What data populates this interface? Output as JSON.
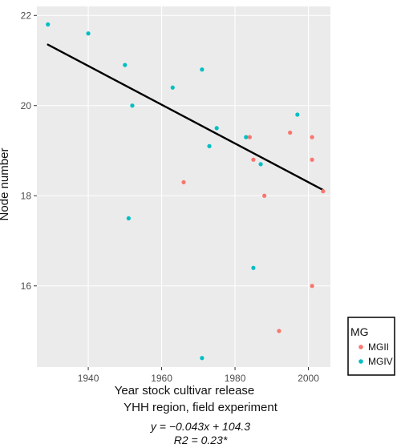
{
  "chart_data": {
    "type": "scatter",
    "xlabel": "Year stock cultivar release",
    "ylabel": "Node number",
    "xlim": [
      1926,
      2006
    ],
    "ylim": [
      14.2,
      22.2
    ],
    "x_ticks": [
      1940,
      1960,
      1980,
      2000
    ],
    "y_ticks": [
      16,
      18,
      20,
      22
    ],
    "x_tick_labels": [
      "1940",
      "1960",
      "1980",
      "2000"
    ],
    "y_tick_labels": [
      "16",
      "18",
      "20",
      "22"
    ],
    "grid": true,
    "legend": {
      "title": "MG",
      "placement": "right",
      "entries": [
        {
          "label": "MGII",
          "color": "#f8766d"
        },
        {
          "label": "MGIV",
          "color": "#00bfc4"
        }
      ]
    },
    "series": [
      {
        "name": "MGII",
        "color": "#f8766d",
        "points": [
          {
            "x": 1966,
            "y": 18.3
          },
          {
            "x": 1984,
            "y": 19.3
          },
          {
            "x": 1985,
            "y": 18.8
          },
          {
            "x": 1988,
            "y": 18.0
          },
          {
            "x": 1992,
            "y": 15.0
          },
          {
            "x": 1995,
            "y": 19.4
          },
          {
            "x": 2001,
            "y": 19.3
          },
          {
            "x": 2001,
            "y": 18.8
          },
          {
            "x": 2001,
            "y": 16.0
          },
          {
            "x": 2004,
            "y": 18.1
          }
        ]
      },
      {
        "name": "MGIV",
        "color": "#00bfc4",
        "points": [
          {
            "x": 1929,
            "y": 21.8
          },
          {
            "x": 1940,
            "y": 21.6
          },
          {
            "x": 1950,
            "y": 20.9
          },
          {
            "x": 1951,
            "y": 17.5
          },
          {
            "x": 1952,
            "y": 20.0
          },
          {
            "x": 1963,
            "y": 20.4
          },
          {
            "x": 1971,
            "y": 20.8
          },
          {
            "x": 1971,
            "y": 14.4
          },
          {
            "x": 1973,
            "y": 19.1
          },
          {
            "x": 1975,
            "y": 19.5
          },
          {
            "x": 1983,
            "y": 19.3
          },
          {
            "x": 1985,
            "y": 16.4
          },
          {
            "x": 1987,
            "y": 18.7
          },
          {
            "x": 1997,
            "y": 19.8
          }
        ]
      }
    ],
    "regression": {
      "x_range": [
        1929,
        2004
      ],
      "slope": -0.043,
      "intercept": 104.3,
      "color": "#000000"
    },
    "annotations": {
      "region": "YHH region, field experiment",
      "equation": "y = −0.043x + 104.3",
      "r2": "R2 = 0.23*"
    },
    "colors": {
      "panel_background": "#ebebeb",
      "grid_major": "#ffffff",
      "text_dark": "#111111",
      "text_muted": "#4d4d4d"
    }
  }
}
